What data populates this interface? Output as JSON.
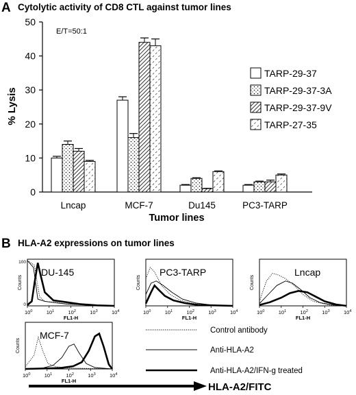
{
  "panel_a": {
    "letter": "A",
    "title": "Cytolytic activity of CD8 CTL against tumor lines",
    "annotation": "E/T=50:1"
  },
  "panel_b": {
    "letter": "B",
    "title": "HLA-A2 expressions on tumor lines",
    "arrow_label": "HLA-A2/FITC",
    "histograms": [
      {
        "name": "DU-145",
        "ylabel": "Counts",
        "xlabel": "FL1-H"
      },
      {
        "name": "PC3-TARP",
        "ylabel": "Counts",
        "xlabel": "FL1-H"
      },
      {
        "name": "Lncap",
        "ylabel": "Counts",
        "xlabel": "FL1-H"
      },
      {
        "name": "MCF-7",
        "ylabel": "Counts",
        "xlabel": "FL1-H"
      }
    ],
    "x_ticks": [
      "10",
      "10",
      "10",
      "10",
      "10"
    ],
    "x_tick_exponents": [
      "0",
      "1",
      "2",
      "3",
      "4"
    ],
    "y_ticks_du145": [
      "0",
      "100"
    ],
    "legend": [
      {
        "label": "Control antibody",
        "style": "dotted"
      },
      {
        "label": "Anti-HLA-A2",
        "style": "thin"
      },
      {
        "label": "Anti-HLA-A2/IFN-g treated",
        "style": "thick"
      }
    ]
  },
  "chart_data": {
    "type": "bar",
    "title": "Cytolytic activity of CD8 CTL against tumor lines",
    "xlabel": "Tumor lines",
    "ylabel": "% Lysis",
    "ylim": [
      0,
      50
    ],
    "yticks": [
      "0",
      "10",
      "20",
      "30",
      "40",
      "50"
    ],
    "grid": false,
    "legend_position": "right",
    "categories": [
      "Lncap",
      "MCF-7",
      "Du145",
      "PC3-TARP"
    ],
    "series": [
      {
        "name": "TARP-29-37",
        "pattern": "open",
        "values": [
          10,
          27,
          2,
          2
        ],
        "errors": [
          0.5,
          1,
          0.2,
          0.2
        ]
      },
      {
        "name": "TARP-29-37-3A",
        "pattern": "dotted",
        "values": [
          14,
          16,
          4,
          3
        ],
        "errors": [
          1,
          1.2,
          0.2,
          0.2
        ]
      },
      {
        "name": "TARP-29-37-9V",
        "pattern": "hatched",
        "values": [
          12,
          44,
          1,
          3
        ],
        "errors": [
          0.8,
          1.3,
          0.1,
          0.5
        ]
      },
      {
        "name": "TARP-27-35",
        "pattern": "dashed-hatch",
        "values": [
          9,
          43,
          6,
          5
        ],
        "errors": [
          0.3,
          2,
          0.2,
          0.3
        ]
      }
    ]
  }
}
